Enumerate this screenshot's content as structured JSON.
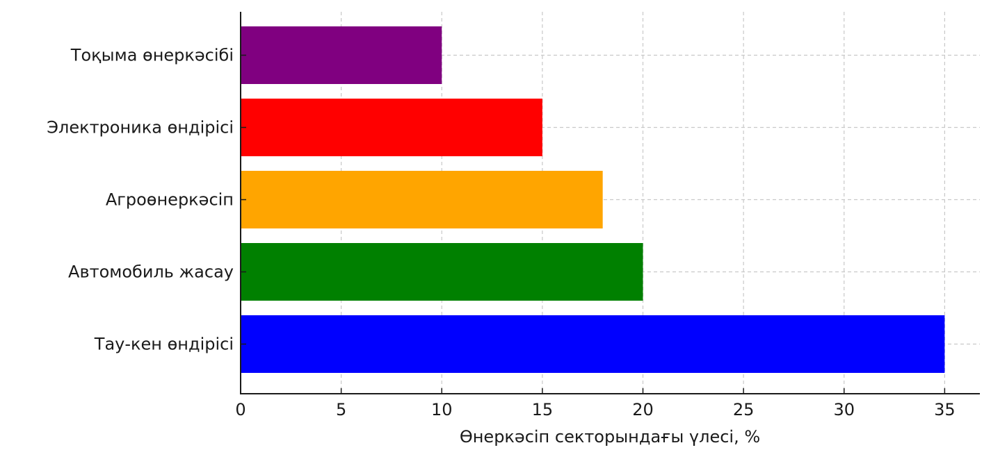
{
  "chart_data": {
    "type": "bar",
    "orientation": "horizontal",
    "title": "",
    "xlabel": "Өнеркәсіп секторындағы үлесі, %",
    "ylabel": "",
    "xlim": [
      0,
      36.75
    ],
    "xticks": [
      0,
      5,
      10,
      15,
      20,
      25,
      30,
      35
    ],
    "grid": true,
    "legend": "none",
    "categories": [
      "Тау-кен өндірісі",
      "Автомобиль жасау",
      "Агроөнеркәсіп",
      "Электроника өндірісі",
      "Тоқыма өнеркәсібі"
    ],
    "values": [
      35,
      20,
      18,
      15,
      10
    ],
    "colors": [
      "#0000ff",
      "#008000",
      "#ffa500",
      "#ff0000",
      "#800080"
    ]
  }
}
